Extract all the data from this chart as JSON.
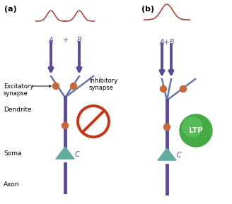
{
  "bg_color": "#ffffff",
  "panel_a_label": "(a)",
  "panel_b_label": "(b)",
  "label_A": "A",
  "label_plus": "+",
  "label_B": "B",
  "label_AB": "A+B",
  "label_excitatory": "Excitatory\nsynapse",
  "label_inhibitory": "Inhibitory\nsynapse",
  "label_dendrite": "Dendrite",
  "label_soma": "Soma",
  "label_axon": "Axon",
  "label_C_a": "C",
  "label_C_b": "C",
  "label_LTP": "LTP",
  "purple_color": "#5B4A9B",
  "teal_color": "#5FADA0",
  "red_color": "#CC3311",
  "orange_dot": "#CC6633",
  "green_ltp": "#44AA44",
  "blue_line": "#6677AA",
  "gauss_color": "#BB3322"
}
